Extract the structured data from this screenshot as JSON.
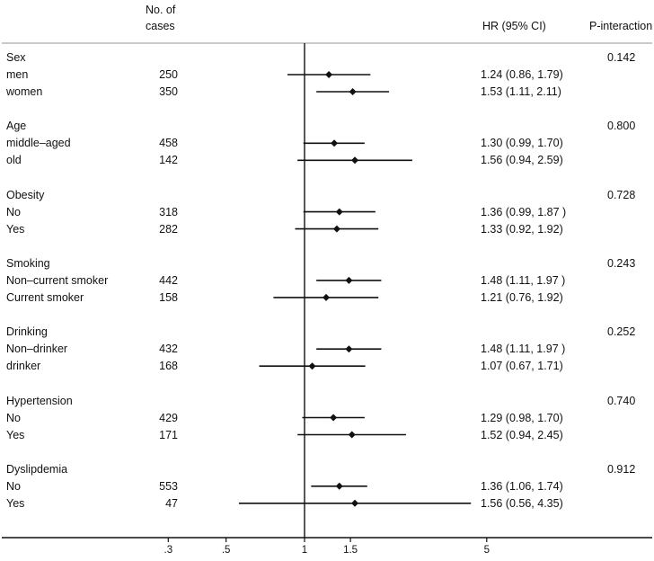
{
  "chart_data": {
    "type": "forest",
    "headers": {
      "cases_line1": "No. of",
      "cases_line2": "cases",
      "hr": "HR (95% CI)",
      "p_interaction": "P-interaction"
    },
    "reference_value": 1,
    "x_scale": "log",
    "x_range": [
      0.22,
      6.6
    ],
    "x_ticks": [
      {
        "value": 0.3,
        "label": ".3"
      },
      {
        "value": 0.5,
        "label": ".5"
      },
      {
        "value": 1,
        "label": "1"
      },
      {
        "value": 1.5,
        "label": "1.5"
      },
      {
        "value": 5,
        "label": "5"
      }
    ],
    "groups": [
      {
        "name": "Sex",
        "p_interaction": "0.142",
        "rows": [
          {
            "label": "men",
            "cases": "250",
            "hr": 1.24,
            "lo": 0.86,
            "hi": 1.79,
            "hr_text": "1.24 (0.86, 1.79)"
          },
          {
            "label": "women",
            "cases": "350",
            "hr": 1.53,
            "lo": 1.11,
            "hi": 2.11,
            "hr_text": "1.53 (1.11, 2.11)"
          }
        ]
      },
      {
        "name": "Age",
        "p_interaction": "0.800",
        "rows": [
          {
            "label": "middle–aged",
            "cases": "458",
            "hr": 1.3,
            "lo": 0.99,
            "hi": 1.7,
            "hr_text": "1.30 (0.99, 1.70)"
          },
          {
            "label": "old",
            "cases": "142",
            "hr": 1.56,
            "lo": 0.94,
            "hi": 2.59,
            "hr_text": "1.56 (0.94, 2.59)"
          }
        ]
      },
      {
        "name": "Obesity",
        "p_interaction": "0.728",
        "rows": [
          {
            "label": "No",
            "cases": "318",
            "hr": 1.36,
            "lo": 0.99,
            "hi": 1.87,
            "hr_text": "1.36 (0.99, 1.87 )"
          },
          {
            "label": "Yes",
            "cases": "282",
            "hr": 1.33,
            "lo": 0.92,
            "hi": 1.92,
            "hr_text": "1.33 (0.92, 1.92)"
          }
        ]
      },
      {
        "name": "Smoking",
        "p_interaction": "0.243",
        "rows": [
          {
            "label": "Non–current smoker",
            "cases": "442",
            "hr": 1.48,
            "lo": 1.11,
            "hi": 1.97,
            "hr_text": "1.48 (1.11, 1.97 )"
          },
          {
            "label": "Current smoker",
            "cases": "158",
            "hr": 1.21,
            "lo": 0.76,
            "hi": 1.92,
            "hr_text": "1.21 (0.76, 1.92)"
          }
        ]
      },
      {
        "name": "Drinking",
        "p_interaction": "0.252",
        "rows": [
          {
            "label": "Non–drinker",
            "cases": "432",
            "hr": 1.48,
            "lo": 1.11,
            "hi": 1.97,
            "hr_text": "1.48 (1.11, 1.97 )"
          },
          {
            "label": "drinker",
            "cases": "168",
            "hr": 1.07,
            "lo": 0.67,
            "hi": 1.71,
            "hr_text": "1.07 (0.67, 1.71)"
          }
        ]
      },
      {
        "name": "Hypertension",
        "p_interaction": "0.740",
        "rows": [
          {
            "label": "No",
            "cases": "429",
            "hr": 1.29,
            "lo": 0.98,
            "hi": 1.7,
            "hr_text": "1.29 (0.98, 1.70)"
          },
          {
            "label": "Yes",
            "cases": "171",
            "hr": 1.52,
            "lo": 0.94,
            "hi": 2.45,
            "hr_text": "1.52 (0.94, 2.45)"
          }
        ]
      },
      {
        "name": "Dyslipdemia",
        "p_interaction": "0.912",
        "rows": [
          {
            "label": "No",
            "cases": "553",
            "hr": 1.36,
            "lo": 1.06,
            "hi": 1.74,
            "hr_text": "1.36 (1.06, 1.74)"
          },
          {
            "label": "Yes",
            "cases": "47",
            "hr": 1.56,
            "lo": 0.56,
            "hi": 4.35,
            "hr_text": "1.56 (0.56, 4.35)"
          }
        ]
      }
    ]
  }
}
